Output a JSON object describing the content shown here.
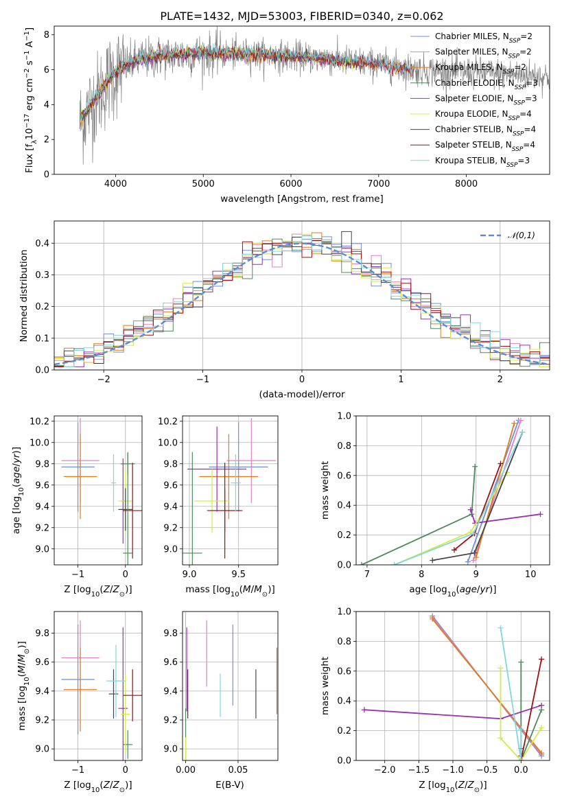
{
  "title": "PLATE=1432, MJD=53003, FIBERID=0340, z=0.062",
  "colors": {
    "Chabrier MILES": "#6f8fdc",
    "Salpeter MILES": "#e67fbf",
    "Kroupa MILES": "#e07b1a",
    "Chabrier ELODIE": "#4c8a5a",
    "Salpeter ELODIE": "#9a2fb0",
    "Kroupa ELODIE": "#d6ea46",
    "Chabrier STELIB": "#444444",
    "Salpeter STELIB": "#a00d0d",
    "Kroupa STELIB": "#7fd6de",
    "data": "#808080"
  },
  "chart_data": [
    {
      "type": "line",
      "title": "PLATE=1432, MJD=53003, FIBERID=0340, z=0.062",
      "xlabel": "wavelength [Angstrom, rest frame]",
      "ylabel": "Flux [f_λ 10^-17 erg cm^-2 s^-1 A^-1]",
      "xlim": [
        3300,
        8950
      ],
      "ylim": [
        0,
        8.5
      ],
      "xticks": [
        "4000",
        "5000",
        "6000",
        "7000",
        "8000"
      ],
      "yticks": [
        "0",
        "2",
        "4",
        "6",
        "8"
      ],
      "legend_position": "right",
      "series": [
        {
          "name": "Chabrier MILES, N_SSP=2",
          "label_main": "Chabrier MILES, N",
          "label_sub": "SSP",
          "label_tail": "=2",
          "x": [
            3600,
            3700,
            3800,
            3950,
            4100,
            4300,
            4600,
            5000,
            5400,
            5800,
            6200,
            6600,
            7000,
            7400
          ],
          "y": [
            3.0,
            3.8,
            4.5,
            5.6,
            6.2,
            6.6,
            6.8,
            6.9,
            6.9,
            6.8,
            6.7,
            6.5,
            6.3,
            6.0
          ]
        },
        {
          "name": "Salpeter MILES, N_SSP=2",
          "label_main": "Salpeter MILES, N",
          "label_sub": "SSP",
          "label_tail": "=2",
          "x": [
            3600,
            3700,
            3800,
            3950,
            4100,
            4300,
            4600,
            5000,
            5400,
            5800,
            6200,
            6600,
            7000,
            7400
          ],
          "y": [
            3.1,
            3.9,
            4.6,
            5.7,
            6.3,
            6.7,
            6.9,
            7.0,
            6.9,
            6.8,
            6.7,
            6.5,
            6.3,
            6.0
          ]
        },
        {
          "name": "Kroupa MILES, N_SSP=2",
          "label_main": "Kroupa MILES, N",
          "label_sub": "SSP",
          "label_tail": "=2",
          "x": [
            3600,
            3700,
            3800,
            3950,
            4100,
            4300,
            4600,
            5000,
            5400,
            5800,
            6200,
            6600,
            7000,
            7400
          ],
          "y": [
            3.0,
            3.7,
            4.5,
            5.6,
            6.2,
            6.6,
            6.8,
            6.9,
            6.9,
            6.8,
            6.7,
            6.5,
            6.3,
            6.0
          ]
        },
        {
          "name": "Chabrier ELODIE, N_SSP=3",
          "label_main": "Chabrier ELODIE, N",
          "label_sub": "SSP",
          "label_tail": "=3",
          "x": [
            3600,
            3700,
            3800,
            3950,
            4100,
            4300,
            4600,
            5000,
            5400,
            5800,
            6200,
            6600,
            6800
          ],
          "y": [
            3.2,
            3.9,
            4.6,
            5.7,
            6.3,
            6.7,
            6.9,
            7.0,
            6.9,
            6.8,
            6.7,
            6.5,
            6.4
          ]
        },
        {
          "name": "Salpeter ELODIE, N_SSP=3",
          "label_main": "Salpeter ELODIE, N",
          "label_sub": "SSP",
          "label_tail": "=3",
          "x": [
            3600,
            3700,
            3800,
            3950,
            4100,
            4300,
            4600,
            5000,
            5400,
            5800,
            6200,
            6600,
            6800
          ],
          "y": [
            3.1,
            3.8,
            4.5,
            5.6,
            6.2,
            6.6,
            6.8,
            6.9,
            6.9,
            6.8,
            6.7,
            6.5,
            6.4
          ]
        },
        {
          "name": "Kroupa ELODIE, N_SSP=4",
          "label_main": "Kroupa ELODIE, N",
          "label_sub": "SSP",
          "label_tail": "=4",
          "x": [
            3600,
            3700,
            3800,
            3950,
            4100,
            4300,
            4600,
            5000,
            5400,
            5800,
            6200,
            6600,
            6800
          ],
          "y": [
            3.2,
            3.9,
            4.6,
            5.7,
            6.3,
            6.7,
            6.9,
            7.0,
            6.9,
            6.8,
            6.7,
            6.5,
            6.4
          ]
        },
        {
          "name": "Chabrier STELIB, N_SSP=4",
          "label_main": "Chabrier STELIB, N",
          "label_sub": "SSP",
          "label_tail": "=4",
          "x": [
            3600,
            3700,
            3800,
            3950,
            4100,
            4300,
            4600,
            5000,
            5400,
            5800,
            6200,
            6600,
            7000,
            7400
          ],
          "y": [
            3.1,
            3.8,
            4.5,
            5.6,
            6.2,
            6.6,
            6.8,
            6.9,
            6.9,
            6.8,
            6.7,
            6.5,
            6.3,
            6.0
          ]
        },
        {
          "name": "Salpeter STELIB, N_SSP=4",
          "label_main": "Salpeter STELIB, N",
          "label_sub": "SSP",
          "label_tail": "=4",
          "x": [
            3600,
            3700,
            3800,
            3950,
            4100,
            4300,
            4600,
            5000,
            5400,
            5800,
            6200,
            6600,
            7000,
            7400
          ],
          "y": [
            3.2,
            3.9,
            4.6,
            5.7,
            6.3,
            6.7,
            6.9,
            7.0,
            6.9,
            6.8,
            6.7,
            6.5,
            6.3,
            6.0
          ]
        },
        {
          "name": "Kroupa STELIB, N_SSP=3",
          "label_main": "Kroupa STELIB, N",
          "label_sub": "SSP",
          "label_tail": "=3",
          "x": [
            3600,
            3700,
            3800,
            3950,
            4100,
            4300,
            4600,
            5000,
            5400,
            5800,
            6200,
            6600,
            7000,
            7400
          ],
          "y": [
            3.3,
            4.0,
            4.7,
            5.8,
            6.4,
            6.8,
            7.0,
            7.1,
            7.0,
            6.9,
            6.8,
            6.6,
            6.4,
            6.1
          ]
        }
      ]
    },
    {
      "type": "bar",
      "xlabel": "(data-model)/error",
      "ylabel": "Normed distribution",
      "xlim": [
        -2.5,
        2.5
      ],
      "ylim": [
        0,
        0.47
      ],
      "xticks": [
        "−2",
        "−1",
        "0",
        "1",
        "2"
      ],
      "yticks": [
        "0.0",
        "0.1",
        "0.2",
        "0.3",
        "0.4"
      ],
      "reference_curve": {
        "name": "𝒩(0,1)",
        "mean": 0,
        "sigma": 1,
        "style": "dashed"
      },
      "histogram_style": "step",
      "bin_width": 0.1,
      "series_order": [
        "Chabrier MILES",
        "Salpeter MILES",
        "Kroupa MILES",
        "Chabrier ELODIE",
        "Salpeter ELODIE",
        "Kroupa ELODIE",
        "Chabrier STELIB",
        "Salpeter STELIB",
        "Kroupa STELIB"
      ]
    },
    {
      "type": "scatter",
      "xlabel": "Z [log10(Z/Z⊙)]",
      "ylabel": "age  [log10(age/yr)]",
      "xlim": [
        -1.5,
        0.35
      ],
      "ylim": [
        8.85,
        10.25
      ],
      "xticks": [
        "−1",
        "0"
      ],
      "yticks": [
        "9.0",
        "9.2",
        "9.4",
        "9.6",
        "9.8",
        "10.0",
        "10.2"
      ],
      "points": [
        {
          "model": "Chabrier MILES",
          "x": -1.0,
          "xerr": 0.35,
          "y": 9.77,
          "yerr": 0.42
        },
        {
          "model": "Salpeter MILES",
          "x": -0.95,
          "xerr": 0.4,
          "y": 9.83,
          "yerr": 0.4
        },
        {
          "model": "Kroupa MILES",
          "x": -0.95,
          "xerr": 0.35,
          "y": 9.68,
          "yerr": 0.4
        },
        {
          "model": "Chabrier ELODIE",
          "x": 0.05,
          "xerr": 0.15,
          "y": 9.8,
          "yerr": 0.1
        },
        {
          "model": "Salpeter ELODIE",
          "x": -0.05,
          "xerr": 0.03,
          "y": 9.45,
          "yerr": 0.4
        },
        {
          "model": "Kroupa ELODIE",
          "x": 0.0,
          "xerr": 0.15,
          "y": 9.45,
          "yerr": 0.3
        },
        {
          "model": "Chabrier STELIB",
          "x": 0.0,
          "xerr": 0.15,
          "y": 9.37,
          "yerr": 0.2
        },
        {
          "model": "Salpeter STELIB",
          "x": 0.15,
          "xerr": 0.2,
          "y": 9.36,
          "yerr": 0.45
        },
        {
          "model": "Kroupa STELIB",
          "x": -0.25,
          "xerr": 0.05,
          "y": 9.62,
          "yerr": 0.27
        },
        {
          "model": "Chabrier ELODIE",
          "x": 0.05,
          "xerr": 0.1,
          "y": 8.96,
          "yerr": 0.95
        }
      ]
    },
    {
      "type": "scatter",
      "xlabel": "mass [log10(M/M⊙)]",
      "ylabel": "",
      "xlim": [
        8.93,
        9.9
      ],
      "ylim": [
        8.85,
        10.25
      ],
      "xticks": [
        "9.0",
        "9.5"
      ],
      "yticks": [
        "9.0",
        "9.2",
        "9.4",
        "9.6",
        "9.8",
        "10.0",
        "10.2"
      ],
      "points": [
        {
          "model": "Chabrier MILES",
          "x": 9.5,
          "xerr": 0.3,
          "y": 9.77,
          "yerr": 0.42
        },
        {
          "model": "Salpeter MILES",
          "x": 9.63,
          "xerr": 0.25,
          "y": 9.83,
          "yerr": 0.4
        },
        {
          "model": "Kroupa MILES",
          "x": 9.4,
          "xerr": 0.3,
          "y": 9.68,
          "yerr": 0.4
        },
        {
          "model": "Chabrier ELODIE",
          "x": 9.03,
          "xerr": 0.1,
          "y": 8.96,
          "yerr": 0.95
        },
        {
          "model": "Salpeter ELODIE",
          "x": 9.28,
          "xerr": 0.3,
          "y": 9.75,
          "yerr": 0.4
        },
        {
          "model": "Kroupa ELODIE",
          "x": 9.23,
          "xerr": 0.18,
          "y": 9.45,
          "yerr": 0.3
        },
        {
          "model": "Chabrier STELIB",
          "x": 9.36,
          "xerr": 0.15,
          "y": 9.36,
          "yerr": 0.2
        },
        {
          "model": "Salpeter STELIB",
          "x": 9.36,
          "xerr": 0.18,
          "y": 9.36,
          "yerr": 0.45
        },
        {
          "model": "Kroupa STELIB",
          "x": 9.47,
          "xerr": 0.05,
          "y": 9.62,
          "yerr": 0.27
        }
      ]
    },
    {
      "type": "line",
      "xlabel": "age  [log10(age/yr)]",
      "ylabel": "mass weight",
      "xlim": [
        6.8,
        10.35
      ],
      "ylim": [
        0,
        1.0
      ],
      "xticks": [
        "7",
        "8",
        "9",
        "10"
      ],
      "yticks": [
        "0.0",
        "0.2",
        "0.4",
        "0.6",
        "0.8",
        "1.0"
      ],
      "series": [
        {
          "name": "Chabrier MILES",
          "x": [
            8.85,
            9.78
          ],
          "y": [
            0.02,
            0.97
          ]
        },
        {
          "name": "Salpeter MILES",
          "x": [
            8.95,
            9.82
          ],
          "y": [
            0.03,
            0.97
          ]
        },
        {
          "name": "Kroupa MILES",
          "x": [
            9.0,
            9.7
          ],
          "y": [
            0.05,
            0.95
          ]
        },
        {
          "name": "Chabrier ELODIE",
          "x": [
            6.9,
            8.92,
            8.98
          ],
          "y": [
            0.0,
            0.34,
            0.66
          ]
        },
        {
          "name": "Salpeter ELODIE",
          "x": [
            8.9,
            8.98,
            10.18
          ],
          "y": [
            0.37,
            0.28,
            0.34
          ]
        },
        {
          "name": "Kroupa ELODIE",
          "x": [
            7.5,
            8.9,
            9.57
          ],
          "y": [
            0.0,
            0.22,
            0.62
          ]
        },
        {
          "name": "Chabrier STELIB",
          "x": [
            8.2,
            8.97,
            9.85
          ],
          "y": [
            0.03,
            0.08,
            0.89
          ]
        },
        {
          "name": "Salpeter STELIB",
          "x": [
            8.6,
            8.97,
            9.45
          ],
          "y": [
            0.1,
            0.21,
            0.68
          ]
        },
        {
          "name": "Kroupa STELIB",
          "x": [
            7.5,
            8.95,
            9.85
          ],
          "y": [
            0.0,
            0.21,
            0.89
          ]
        }
      ]
    },
    {
      "type": "scatter",
      "xlabel": "Z [log10(Z/Z⊙)]",
      "ylabel": "mass [log10(M/M⊙)]",
      "xlim": [
        -1.5,
        0.35
      ],
      "ylim": [
        8.92,
        9.95
      ],
      "xticks": [
        "−1",
        "0"
      ],
      "yticks": [
        "9.0",
        "9.2",
        "9.4",
        "9.6",
        "9.8"
      ],
      "points": [
        {
          "model": "Chabrier MILES",
          "x": -1.0,
          "xerr": 0.35,
          "y": 9.48,
          "yerr": 0.38
        },
        {
          "model": "Salpeter MILES",
          "x": -0.95,
          "xerr": 0.4,
          "y": 9.63,
          "yerr": 0.26
        },
        {
          "model": "Kroupa MILES",
          "x": -0.95,
          "xerr": 0.35,
          "y": 9.41,
          "yerr": 0.29
        },
        {
          "model": "Chabrier ELODIE",
          "x": 0.05,
          "xerr": 0.1,
          "y": 9.03,
          "yerr": 0.1
        },
        {
          "model": "Salpeter ELODIE",
          "x": -0.05,
          "xerr": 0.1,
          "y": 9.28,
          "yerr": 0.56
        },
        {
          "model": "Kroupa ELODIE",
          "x": 0.0,
          "xerr": 0.1,
          "y": 9.24,
          "yerr": 0.27
        },
        {
          "model": "Chabrier STELIB",
          "x": -0.25,
          "xerr": 0.1,
          "y": 9.38,
          "yerr": 0.17
        },
        {
          "model": "Salpeter STELIB",
          "x": 0.15,
          "xerr": 0.2,
          "y": 9.37,
          "yerr": 0.18
        },
        {
          "model": "Kroupa STELIB",
          "x": -0.2,
          "xerr": 0.2,
          "y": 9.47,
          "yerr": 0.25
        }
      ]
    },
    {
      "type": "scatter",
      "xlabel": "E(B-V)",
      "ylabel": "",
      "xlim": [
        -0.003,
        0.088
      ],
      "ylim": [
        8.92,
        9.95
      ],
      "xticks": [
        "0.00",
        "0.05"
      ],
      "yticks": [
        "9.0",
        "9.2",
        "9.4",
        "9.6",
        "9.8"
      ],
      "points": [
        {
          "model": "Chabrier MILES",
          "x": 0.045,
          "y": 9.58,
          "yerr": 0.28
        },
        {
          "model": "Salpeter MILES",
          "x": 0.02,
          "y": 9.66,
          "yerr": 0.23
        },
        {
          "model": "Kroupa MILES",
          "x": 0.087,
          "y": 9.47,
          "yerr": 0.23
        },
        {
          "model": "Chabrier ELODIE",
          "x": 0.0,
          "y": 9.1,
          "yerr": 0.18
        },
        {
          "model": "Salpeter ELODIE",
          "x": 0.001,
          "y": 9.55,
          "yerr": 0.29
        },
        {
          "model": "Kroupa ELODIE",
          "x": 0.0,
          "y": 9.0,
          "yerr": 0.08
        },
        {
          "model": "Chabrier STELIB",
          "x": 0.067,
          "y": 9.38,
          "yerr": 0.17
        },
        {
          "model": "Salpeter STELIB",
          "x": 0.002,
          "y": 9.38,
          "yerr": 0.17
        },
        {
          "model": "Kroupa STELIB",
          "x": 0.033,
          "y": 9.37,
          "yerr": 0.15
        }
      ]
    },
    {
      "type": "line",
      "xlabel": "Z [log10(Z/Z⊙)]",
      "ylabel": "mass weight",
      "xlim": [
        -2.42,
        0.42
      ],
      "ylim": [
        0,
        1.0
      ],
      "xticks": [
        "−2.0",
        "−1.5",
        "−1.0",
        "−0.5",
        "0.0"
      ],
      "yticks": [
        "0.0",
        "0.2",
        "0.4",
        "0.6",
        "0.8",
        "1.0"
      ],
      "series": [
        {
          "name": "Chabrier MILES",
          "x": [
            -1.3,
            0.3
          ],
          "y": [
            0.97,
            0.03
          ]
        },
        {
          "name": "Salpeter MILES",
          "x": [
            -1.3,
            0.3
          ],
          "y": [
            0.96,
            0.04
          ]
        },
        {
          "name": "Kroupa MILES",
          "x": [
            -1.3,
            0.3
          ],
          "y": [
            0.95,
            0.05
          ]
        },
        {
          "name": "Chabrier ELODIE",
          "x": [
            0.0,
            0.0,
            0.3
          ],
          "y": [
            0.66,
            0.0,
            0.34
          ]
        },
        {
          "name": "Salpeter ELODIE",
          "x": [
            -2.3,
            -0.3,
            0.3
          ],
          "y": [
            0.34,
            0.28,
            0.37
          ]
        },
        {
          "name": "Kroupa ELODIE",
          "x": [
            -0.3,
            -0.3,
            0.0,
            0.3
          ],
          "y": [
            0.62,
            0.15,
            0.0,
            0.22
          ]
        },
        {
          "name": "Chabrier STELIB",
          "x": [
            0.0,
            0.0
          ],
          "y": [
            0.03,
            0.08
          ]
        },
        {
          "name": "Salpeter STELIB",
          "x": [
            0.0,
            0.3
          ],
          "y": [
            0.0,
            0.68
          ]
        },
        {
          "name": "Kroupa STELIB",
          "x": [
            -0.3,
            0.0,
            0.0
          ],
          "y": [
            0.89,
            0.0,
            0.21
          ]
        }
      ]
    }
  ]
}
